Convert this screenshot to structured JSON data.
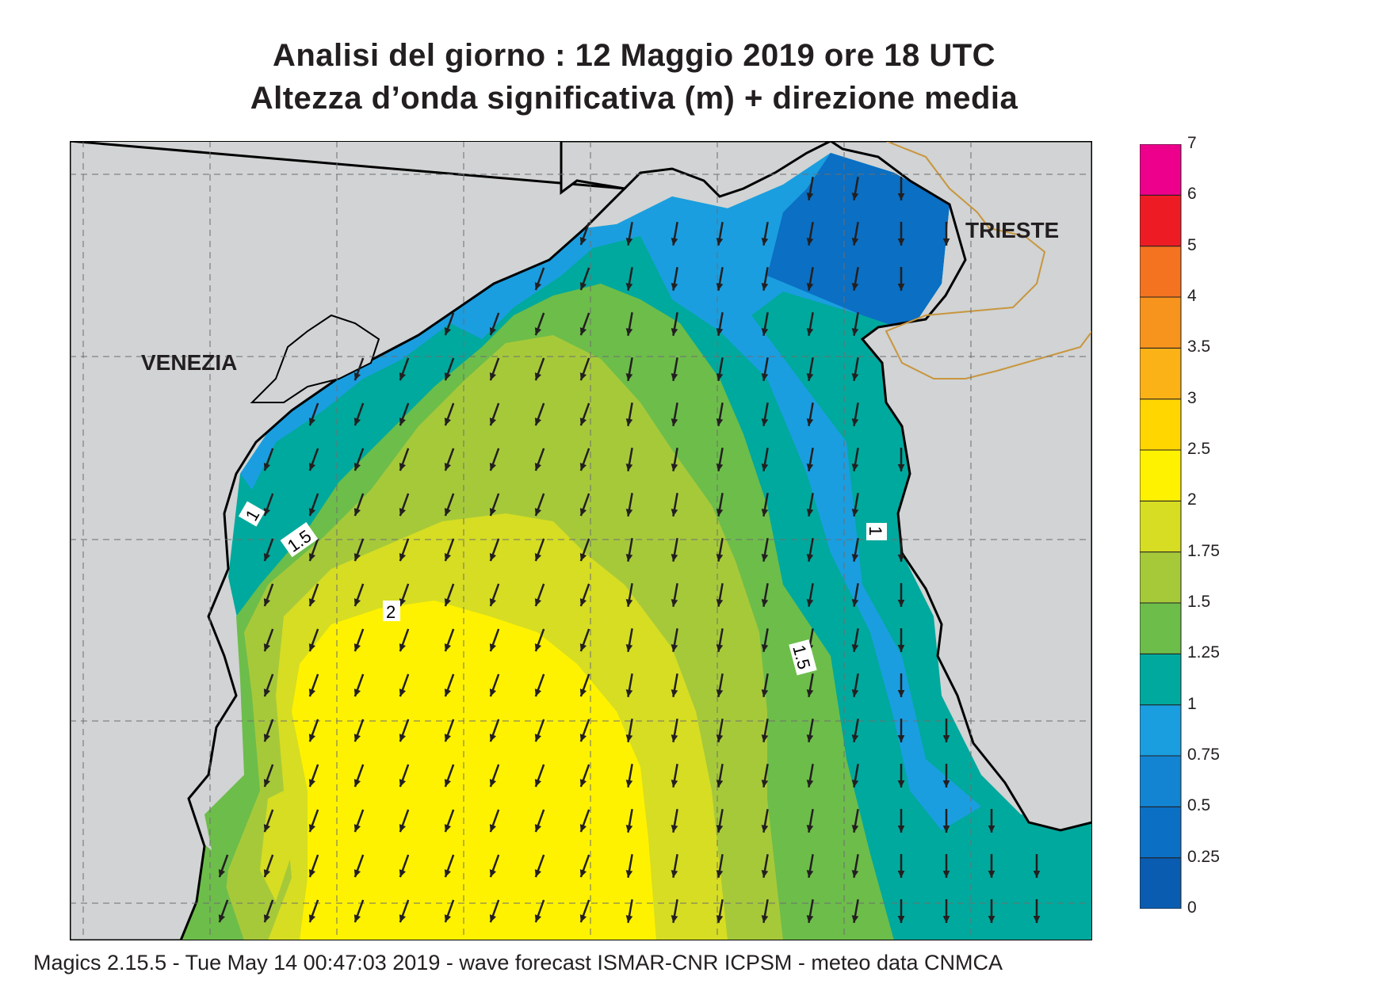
{
  "title_line1": "Analisi del giorno :  12   Maggio  2019   ore 18 UTC",
  "title_line2": "Altezza d’onda significativa (m) + direzione media",
  "footer": "Magics 2.15.5 - Tue May 14 00:47:03 2019 - wave forecast  ISMAR-CNR  ICPSM - meteo data   CNMCA",
  "cities": [
    {
      "name": "VENEZIA"
    },
    {
      "name": "TRIESTE"
    }
  ],
  "contour_labels": [
    "1",
    "1.5",
    "2",
    "1.5",
    "1"
  ],
  "colorbar": {
    "levels": [
      "0",
      "0.25",
      "0.5",
      "0.75",
      "1",
      "1.25",
      "1.5",
      "1.75",
      "2",
      "2.5",
      "3",
      "3.5",
      "4",
      "5",
      "6",
      "7"
    ],
    "colors": [
      "#0a5cb0",
      "#0b6fc3",
      "#1284d2",
      "#1a9ee0",
      "#00a99d",
      "#6dbd4a",
      "#a6c93a",
      "#d6dd22",
      "#fff200",
      "#ffd600",
      "#fbb216",
      "#f7941d",
      "#f37321",
      "#ed1c24",
      "#ec008c"
    ]
  },
  "land_color": "#d1d3d4",
  "wave_direction": "south-southwest"
}
